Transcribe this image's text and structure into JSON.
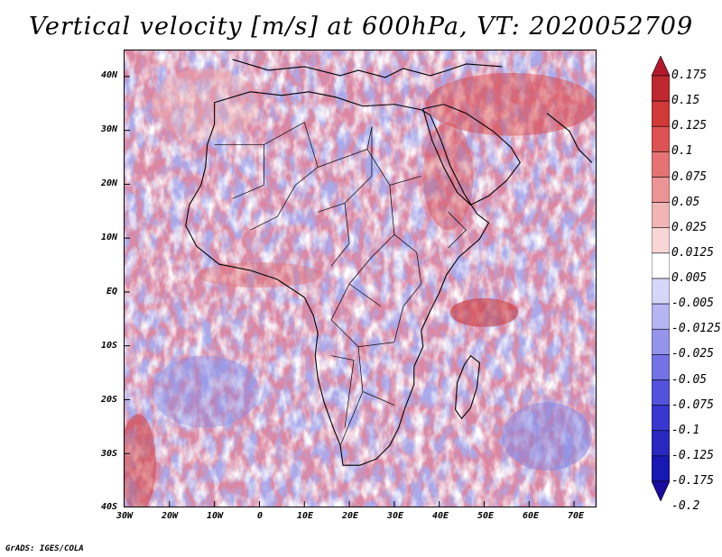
{
  "title": "Vertical velocity [m/s] at 600hPa, VT: 2020052709",
  "footer": "GrADS: IGES/COLA",
  "map": {
    "lat_labels": [
      "40N",
      "30N",
      "20N",
      "10N",
      "EQ",
      "10S",
      "20S",
      "30S",
      "40S"
    ],
    "lon_labels": [
      "30W",
      "20W",
      "10W",
      "0",
      "10E",
      "20E",
      "30E",
      "40E",
      "50E",
      "60E",
      "70E"
    ],
    "extent": {
      "lon_min": -30,
      "lon_max": 75,
      "lat_min": -40,
      "lat_max": 45
    }
  },
  "colorbar": {
    "labels": [
      "0.175",
      "0.15",
      "0.125",
      "0.1",
      "0.075",
      "0.05",
      "0.025",
      "0.0125",
      "0.005",
      "-0.005",
      "-0.0125",
      "-0.025",
      "-0.05",
      "-0.075",
      "-0.1",
      "-0.125",
      "-0.175",
      "-0.2"
    ],
    "colors": [
      "#b2182b",
      "#c0282f",
      "#d13838",
      "#dd5252",
      "#e57373",
      "#ec9494",
      "#f2b5b5",
      "#f8d6d6",
      "#ffffff",
      "#d6d6f8",
      "#b5b5f2",
      "#9494ec",
      "#7373e5",
      "#5252dd",
      "#3838d1",
      "#2828c0",
      "#1818b2",
      "#0c0c90"
    ],
    "tip_top": "#b2182b",
    "tip_bottom": "#1a0aa0"
  }
}
